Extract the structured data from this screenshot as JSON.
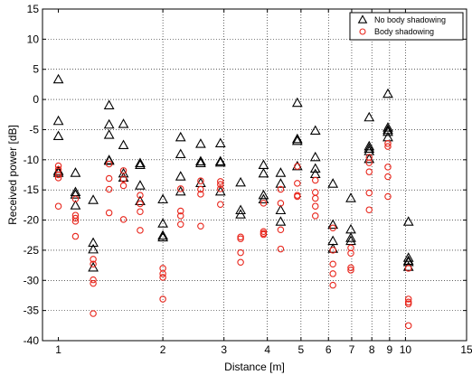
{
  "chart_data": {
    "type": "scatter",
    "title": "",
    "xlabel": "Distance [m]",
    "ylabel": "Received power [dB]",
    "xscale": "log",
    "xlim": [
      0.9,
      15
    ],
    "ylim": [
      -40,
      15
    ],
    "grid": true,
    "legend_position": "top-right",
    "x_ticks": [
      1,
      2,
      3,
      4,
      5,
      6,
      7,
      8,
      9,
      10,
      15
    ],
    "y_ticks": [
      -40,
      -35,
      -30,
      -25,
      -20,
      -15,
      -10,
      -5,
      0,
      5,
      10,
      15
    ],
    "x_tick_labels": [
      "1",
      "2",
      "3",
      "4",
      "5",
      "6",
      "7",
      "8",
      "9",
      "10",
      "15"
    ],
    "y_tick_labels": [
      "-40",
      "-35",
      "-30",
      "-25",
      "-20",
      "-15",
      "-10",
      "-5",
      "0",
      "5",
      "10",
      "15"
    ],
    "series": [
      {
        "name": "No body shadowing",
        "marker": "triangle",
        "color": "#000000",
        "points": [
          [
            1.0,
            3.3
          ],
          [
            1.0,
            -3.6
          ],
          [
            1.0,
            -6.1
          ],
          [
            1.0,
            -11.9
          ],
          [
            1.0,
            -12.2
          ],
          [
            1.12,
            -12.2
          ],
          [
            1.12,
            -15.4
          ],
          [
            1.12,
            -15.8
          ],
          [
            1.12,
            -17.6
          ],
          [
            1.26,
            -16.7
          ],
          [
            1.26,
            -23.8
          ],
          [
            1.26,
            -24.9
          ],
          [
            1.26,
            -27.9
          ],
          [
            1.4,
            -1.0
          ],
          [
            1.4,
            -4.2
          ],
          [
            1.4,
            -5.9
          ],
          [
            1.4,
            -10.1
          ],
          [
            1.4,
            -10.2
          ],
          [
            1.54,
            -4.1
          ],
          [
            1.54,
            -7.6
          ],
          [
            1.54,
            -12.3
          ],
          [
            1.54,
            -13.0
          ],
          [
            1.72,
            -10.6
          ],
          [
            1.72,
            -10.9
          ],
          [
            1.72,
            -14.3
          ],
          [
            1.72,
            -16.9
          ],
          [
            2.0,
            -16.6
          ],
          [
            2.0,
            -20.6
          ],
          [
            2.0,
            -22.6
          ],
          [
            2.0,
            -22.9
          ],
          [
            2.25,
            -6.3
          ],
          [
            2.25,
            -9.1
          ],
          [
            2.25,
            -12.8
          ],
          [
            2.25,
            -15.3
          ],
          [
            2.57,
            -7.4
          ],
          [
            2.57,
            -10.3
          ],
          [
            2.57,
            -10.6
          ],
          [
            2.57,
            -13.9
          ],
          [
            2.93,
            -7.3
          ],
          [
            2.93,
            -10.3
          ],
          [
            2.93,
            -10.5
          ],
          [
            2.93,
            -15.3
          ],
          [
            3.35,
            -13.8
          ],
          [
            3.35,
            -18.4
          ],
          [
            3.35,
            -19.1
          ],
          [
            3.9,
            -10.9
          ],
          [
            3.9,
            -12.3
          ],
          [
            3.9,
            -15.9
          ],
          [
            3.9,
            -16.6
          ],
          [
            4.37,
            -12.2
          ],
          [
            4.37,
            -14.0
          ],
          [
            4.37,
            -18.4
          ],
          [
            4.37,
            -20.3
          ],
          [
            4.88,
            -0.6
          ],
          [
            4.88,
            -6.6
          ],
          [
            4.88,
            -6.9
          ],
          [
            4.88,
            -11.1
          ],
          [
            5.5,
            -5.2
          ],
          [
            5.5,
            -9.6
          ],
          [
            5.5,
            -11.5
          ],
          [
            5.5,
            -12.4
          ],
          [
            6.18,
            -14.0
          ],
          [
            6.18,
            -20.8
          ],
          [
            6.18,
            -23.5
          ],
          [
            6.18,
            -24.8
          ],
          [
            6.96,
            -16.4
          ],
          [
            6.96,
            -21.6
          ],
          [
            6.96,
            -23.0
          ],
          [
            6.96,
            -23.5
          ],
          [
            7.86,
            -3.0
          ],
          [
            7.86,
            -7.8
          ],
          [
            7.86,
            -8.2
          ],
          [
            7.86,
            -8.6
          ],
          [
            7.86,
            -9.9
          ],
          [
            8.9,
            0.9
          ],
          [
            8.9,
            -4.7
          ],
          [
            8.9,
            -5.1
          ],
          [
            8.9,
            -5.4
          ],
          [
            8.9,
            -6.3
          ],
          [
            10.2,
            -20.3
          ],
          [
            10.2,
            -26.3
          ],
          [
            10.2,
            -26.8
          ],
          [
            10.2,
            -27.0
          ],
          [
            10.2,
            -27.8
          ]
        ]
      },
      {
        "name": "Body shadowing",
        "marker": "circle",
        "color": "#e8251b",
        "points": [
          [
            1.0,
            -11.0
          ],
          [
            1.0,
            -11.6
          ],
          [
            1.0,
            -12.5
          ],
          [
            1.0,
            -13.0
          ],
          [
            1.0,
            -17.7
          ],
          [
            1.12,
            -16.5
          ],
          [
            1.12,
            -19.2
          ],
          [
            1.12,
            -19.7
          ],
          [
            1.12,
            -20.2
          ],
          [
            1.12,
            -22.7
          ],
          [
            1.26,
            -26.5
          ],
          [
            1.26,
            -27.3
          ],
          [
            1.26,
            -29.9
          ],
          [
            1.26,
            -30.5
          ],
          [
            1.26,
            -35.5
          ],
          [
            1.4,
            -10.7
          ],
          [
            1.4,
            -13.1
          ],
          [
            1.4,
            -14.9
          ],
          [
            1.4,
            -18.8
          ],
          [
            1.54,
            -11.8
          ],
          [
            1.54,
            -13.2
          ],
          [
            1.54,
            -14.3
          ],
          [
            1.54,
            -19.9
          ],
          [
            1.72,
            -15.9
          ],
          [
            1.72,
            -17.3
          ],
          [
            1.72,
            -18.6
          ],
          [
            1.72,
            -21.7
          ],
          [
            2.0,
            -28.0
          ],
          [
            2.0,
            -28.9
          ],
          [
            2.0,
            -29.5
          ],
          [
            2.0,
            -33.1
          ],
          [
            2.25,
            -14.8
          ],
          [
            2.25,
            -18.5
          ],
          [
            2.25,
            -19.3
          ],
          [
            2.25,
            -20.7
          ],
          [
            2.57,
            -13.5
          ],
          [
            2.57,
            -14.9
          ],
          [
            2.57,
            -15.7
          ],
          [
            2.57,
            -21.0
          ],
          [
            2.93,
            -13.6
          ],
          [
            2.93,
            -14.1
          ],
          [
            2.93,
            -14.8
          ],
          [
            2.93,
            -17.4
          ],
          [
            3.35,
            -22.8
          ],
          [
            3.35,
            -23.1
          ],
          [
            3.35,
            -25.4
          ],
          [
            3.35,
            -27.0
          ],
          [
            3.9,
            -17.2
          ],
          [
            3.9,
            -21.9
          ],
          [
            3.9,
            -22.2
          ],
          [
            3.9,
            -22.4
          ],
          [
            4.37,
            -14.9
          ],
          [
            4.37,
            -17.2
          ],
          [
            4.37,
            -21.6
          ],
          [
            4.37,
            -24.8
          ],
          [
            4.88,
            -11.1
          ],
          [
            4.88,
            -13.9
          ],
          [
            4.88,
            -15.9
          ],
          [
            4.88,
            -16.1
          ],
          [
            5.5,
            -13.4
          ],
          [
            5.5,
            -15.4
          ],
          [
            5.5,
            -16.4
          ],
          [
            5.5,
            -17.7
          ],
          [
            5.5,
            -19.3
          ],
          [
            6.18,
            -21.3
          ],
          [
            6.18,
            -25.0
          ],
          [
            6.18,
            -27.3
          ],
          [
            6.18,
            -28.9
          ],
          [
            6.18,
            -30.8
          ],
          [
            6.96,
            -24.6
          ],
          [
            6.96,
            -25.5
          ],
          [
            6.96,
            -27.9
          ],
          [
            6.96,
            -28.3
          ],
          [
            7.86,
            -9.6
          ],
          [
            7.86,
            -10.5
          ],
          [
            7.86,
            -12.0
          ],
          [
            7.86,
            -15.5
          ],
          [
            7.86,
            -18.3
          ],
          [
            8.9,
            -7.3
          ],
          [
            8.9,
            -7.8
          ],
          [
            8.9,
            -11.2
          ],
          [
            8.9,
            -12.8
          ],
          [
            8.9,
            -16.1
          ],
          [
            10.2,
            -28.0
          ],
          [
            10.2,
            -33.1
          ],
          [
            10.2,
            -33.6
          ],
          [
            10.2,
            -33.9
          ],
          [
            10.2,
            -37.5
          ]
        ]
      }
    ]
  }
}
